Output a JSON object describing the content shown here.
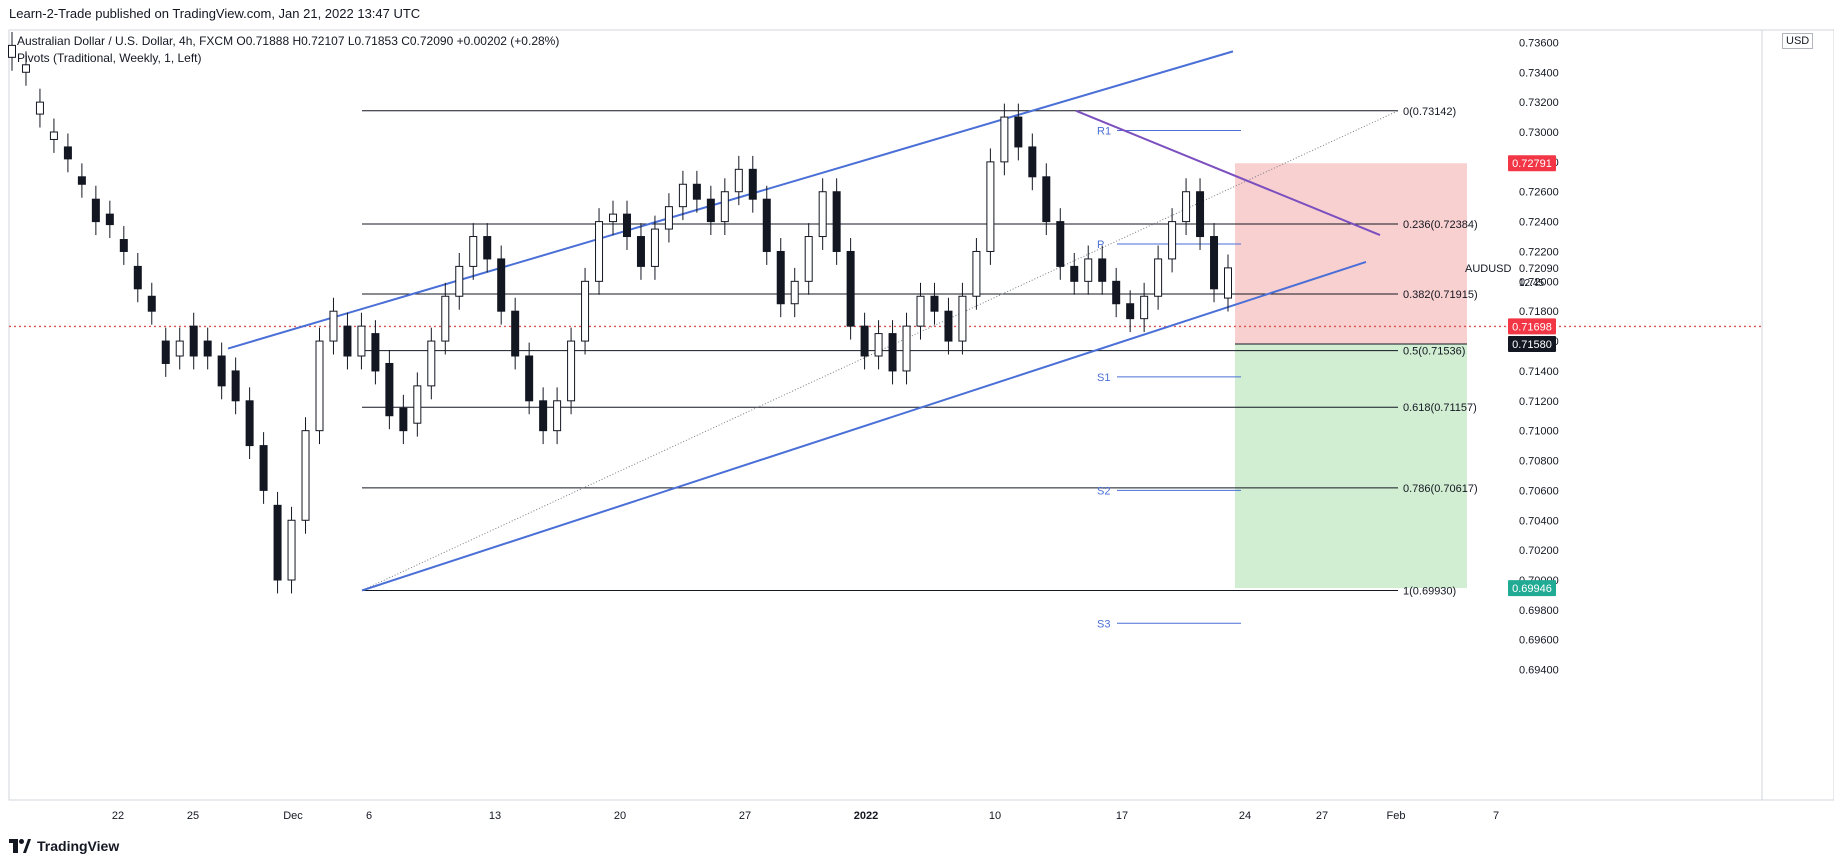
{
  "header": {
    "published": "Learn-2-Trade published on TradingView.com, Jan 21, 2022 13:47 UTC"
  },
  "legend": {
    "symbol_line": "Australian Dollar / U.S. Dollar, 4h, FXCM  O0.71888  H0.72107  L0.71853  C0.72090  +0.00202 (+0.28%)",
    "indicator_line": "Pivots (Traditional, Weekly, 1, Left)"
  },
  "currency": "USD",
  "symbol": "AUDUSD",
  "countdown": "12:45",
  "brand": "TradingView",
  "colors": {
    "up": "#ffffff",
    "down": "#131722",
    "channel": "#4a6fd6",
    "resistance": "#7b4fbf",
    "stop_zone": "#f8c8c8",
    "target_zone": "#cdeccd",
    "price_dashed": "#d9534f"
  },
  "chart_data": {
    "type": "candlestick",
    "title": "",
    "xlabel": "",
    "ylabel": "",
    "ylim": [
      0.6925,
      0.7362
    ],
    "x_ticks": [
      "22",
      "25",
      "Dec",
      "6",
      "13",
      "20",
      "27",
      "2022",
      "10",
      "17",
      "24",
      "27",
      "Feb",
      "7"
    ],
    "y_ticks": [
      0.694,
      0.696,
      0.698,
      0.7,
      0.702,
      0.704,
      0.706,
      0.708,
      0.71,
      0.712,
      0.714,
      0.716,
      0.718,
      0.72,
      0.722,
      0.724,
      0.726,
      0.728,
      0.73,
      0.732,
      0.734,
      0.736
    ],
    "y_tick_labels": [
      "0.69400",
      "0.69600",
      "0.69800",
      "0.70000",
      "0.70200",
      "0.70400",
      "0.70600",
      "0.70800",
      "0.71000",
      "0.71200",
      "0.71400",
      "0.71600",
      "0.71800",
      "0.72000",
      "0.72200",
      "0.72400",
      "0.72600",
      "0.72800",
      "0.73000",
      "0.73200",
      "0.73400",
      "0.73600"
    ],
    "price_tags": [
      {
        "label": "0.72791",
        "value": 0.72791,
        "color": "#f23645"
      },
      {
        "label": "AUDUSD",
        "value": 0.7209,
        "color": "none"
      },
      {
        "label": "0.72090",
        "value": 0.7209,
        "color": "none"
      },
      {
        "label": "0.71698",
        "value": 0.71698,
        "color": "#f23645"
      },
      {
        "label": "0.71580",
        "value": 0.7158,
        "color": "#131722"
      },
      {
        "label": "0.69946",
        "value": 0.69946,
        "color": "#22ab94"
      }
    ],
    "fib_levels": [
      {
        "label": "0(0.73142)",
        "value": 0.73142
      },
      {
        "label": "0.236(0.72384)",
        "value": 0.72384
      },
      {
        "label": "0.382(0.71915)",
        "value": 0.71915
      },
      {
        "label": "0.5(0.71536)",
        "value": 0.71536
      },
      {
        "label": "0.618(0.71157)",
        "value": 0.71157
      },
      {
        "label": "0.786(0.70617)",
        "value": 0.70617
      },
      {
        "label": "1(0.69930)",
        "value": 0.6993
      }
    ],
    "pivots": [
      {
        "label": "R1",
        "value": 0.7301
      },
      {
        "label": "P",
        "value": 0.7225
      },
      {
        "label": "S1",
        "value": 0.7136
      },
      {
        "label": "S2",
        "value": 0.706
      },
      {
        "label": "S3",
        "value": 0.6971
      }
    ],
    "current_price": 0.7209,
    "dotted_level": 0.71698,
    "candles_ohlc_sample": [
      {
        "date": "Nov 18",
        "open": 0.7343,
        "high": 0.7356,
        "low": 0.7328,
        "close": 0.7332
      },
      {
        "date": "Dec 3",
        "open": 0.7046,
        "high": 0.7065,
        "low": 0.6993,
        "close": 0.7002
      },
      {
        "date": "Jan 13",
        "open": 0.728,
        "high": 0.73142,
        "low": 0.7262,
        "close": 0.7305
      },
      {
        "date": "Jan 21",
        "open": 0.71888,
        "high": 0.72107,
        "low": 0.71853,
        "close": 0.7209
      }
    ]
  }
}
